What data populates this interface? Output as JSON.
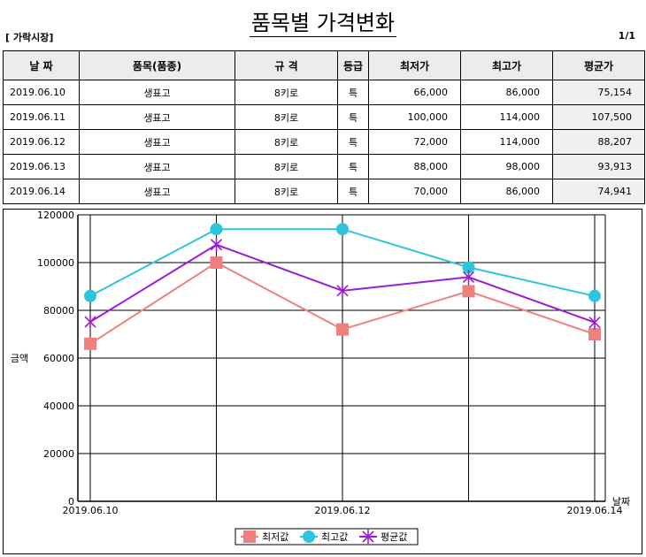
{
  "title": "품목별 가격변화",
  "market_label": "[ 가락시장]",
  "page_indicator": "1/1",
  "table": {
    "headers": [
      "날 짜",
      "품목(품종)",
      "규 격",
      "등급",
      "최저가",
      "최고가",
      "평균가"
    ],
    "rows": [
      [
        "2019.06.10",
        "생표고",
        "8키로",
        "특",
        "66,000",
        "86,000",
        "75,154"
      ],
      [
        "2019.06.11",
        "생표고",
        "8키로",
        "특",
        "100,000",
        "114,000",
        "107,500"
      ],
      [
        "2019.06.12",
        "생표고",
        "8키로",
        "특",
        "72,000",
        "114,000",
        "88,207"
      ],
      [
        "2019.06.13",
        "생표고",
        "8키로",
        "특",
        "88,000",
        "98,000",
        "93,913"
      ],
      [
        "2019.06.14",
        "생표고",
        "8키로",
        "특",
        "70,000",
        "86,000",
        "74,941"
      ]
    ]
  },
  "chart_data": {
    "type": "line",
    "title": "",
    "xlabel": "날짜",
    "ylabel": "금액",
    "x": [
      "2019.06.10",
      "2019.06.11",
      "2019.06.12",
      "2019.06.13",
      "2019.06.14"
    ],
    "x_tick_labels": [
      "2019.06.10",
      "",
      "2019.06.12",
      "",
      "2019.06.14"
    ],
    "ylim": [
      0,
      120000
    ],
    "yticks": [
      0,
      20000,
      40000,
      60000,
      80000,
      100000,
      120000
    ],
    "grid": true,
    "legend": "bottom",
    "series": [
      {
        "name": "최저값",
        "values": [
          66000,
          100000,
          72000,
          88000,
          70000
        ],
        "color": "#f08080",
        "marker": "square"
      },
      {
        "name": "최고값",
        "values": [
          86000,
          114000,
          114000,
          98000,
          86000
        ],
        "color": "#2ec4dc",
        "marker": "circle"
      },
      {
        "name": "평균값",
        "values": [
          75154,
          107500,
          88207,
          93913,
          74941
        ],
        "color": "#9b1bd6",
        "marker": "star"
      }
    ]
  }
}
